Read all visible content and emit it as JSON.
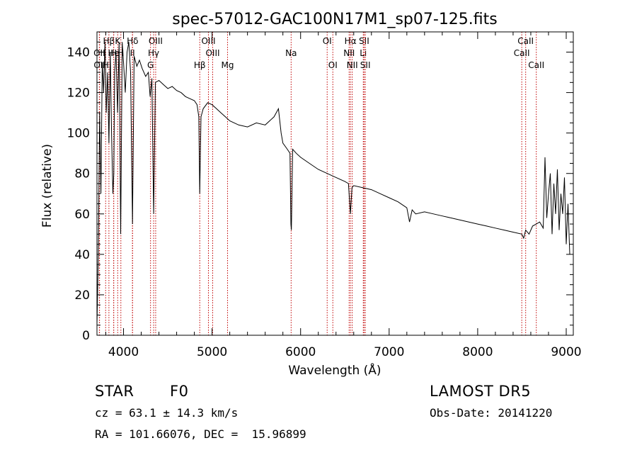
{
  "chart_data": {
    "type": "line",
    "title": "spec-57012-GAC100N17M1_sp07-125.fits",
    "xlabel": "Wavelength (Å)",
    "ylabel": "Flux (relative)",
    "xlim": [
      3700,
      9080
    ],
    "ylim": [
      0,
      150
    ],
    "x_ticks": [
      4000,
      5000,
      6000,
      7000,
      8000,
      9000
    ],
    "y_ticks": [
      0,
      20,
      40,
      60,
      80,
      100,
      120,
      140
    ],
    "grid": false,
    "series": [
      {
        "x": [
          3700,
          3715,
          3730,
          3745,
          3760,
          3775,
          3790,
          3805,
          3820,
          3835,
          3850,
          3865,
          3880,
          3890,
          3900,
          3915,
          3933,
          3950,
          3968,
          3985,
          4000,
          4020,
          4040,
          4060,
          4080,
          4101,
          4120,
          4150,
          4180,
          4210,
          4250,
          4280,
          4300,
          4320,
          4340,
          4360,
          4400,
          4450,
          4500,
          4550,
          4600,
          4650,
          4700,
          4750,
          4800,
          4830,
          4850,
          4861,
          4875,
          4900,
          4950,
          5000,
          5050,
          5100,
          5150,
          5200,
          5300,
          5400,
          5500,
          5600,
          5700,
          5750,
          5780,
          5800,
          5850,
          5880,
          5890,
          5896,
          5910,
          5950,
          6000,
          6100,
          6200,
          6300,
          6400,
          6500,
          6540,
          6563,
          6580,
          6600,
          6700,
          6800,
          6900,
          7000,
          7100,
          7200,
          7230,
          7260,
          7300,
          7400,
          7500,
          7600,
          7700,
          7800,
          7900,
          8000,
          8100,
          8200,
          8300,
          8400,
          8498,
          8520,
          8542,
          8580,
          8620,
          8662,
          8700,
          8740,
          8760,
          8780,
          8800,
          8820,
          8840,
          8860,
          8880,
          8900,
          8920,
          8940,
          8960,
          8980,
          9000,
          9020,
          9040
        ],
        "y": [
          5,
          40,
          110,
          70,
          135,
          120,
          145,
          110,
          130,
          95,
          140,
          100,
          70,
          80,
          130,
          140,
          110,
          145,
          50,
          145,
          135,
          120,
          140,
          145,
          130,
          55,
          138,
          133,
          136,
          132,
          128,
          130,
          118,
          127,
          60,
          125,
          126,
          124,
          122,
          123,
          121,
          120,
          118,
          117,
          116,
          114,
          108,
          70,
          108,
          112,
          115,
          114,
          112,
          110,
          108,
          106,
          104,
          103,
          105,
          104,
          108,
          112,
          100,
          95,
          92,
          90,
          55,
          52,
          92,
          90,
          88,
          85,
          82,
          80,
          78,
          76,
          75,
          60,
          73,
          74,
          73,
          72,
          70,
          68,
          66,
          63,
          56,
          62,
          60,
          61,
          60,
          59,
          58,
          57,
          56,
          55,
          54,
          53,
          52,
          51,
          50,
          48,
          52,
          50,
          54,
          55,
          56,
          53,
          88,
          58,
          70,
          80,
          50,
          75,
          60,
          82,
          52,
          70,
          60,
          78,
          45,
          65,
          40
        ]
      }
    ],
    "line_markers": [
      {
        "label": "Hβ",
        "x": 3835,
        "row": 1
      },
      {
        "label": "K",
        "x": 3934,
        "row": 1
      },
      {
        "label": "Hδ",
        "x": 4102,
        "row": 1
      },
      {
        "label": "OIII",
        "x": 4363,
        "row": 1
      },
      {
        "label": "OIII",
        "x": 4959,
        "row": 1
      },
      {
        "label": "OI",
        "x": 6300,
        "row": 1
      },
      {
        "label": "Hα",
        "x": 6563,
        "row": 1
      },
      {
        "label": "SII",
        "x": 6717,
        "row": 1
      },
      {
        "label": "CaII",
        "x": 8542,
        "row": 1
      },
      {
        "label": "OII",
        "x": 3727,
        "row": 2
      },
      {
        "label": "H",
        "x": 3970,
        "row": 2
      },
      {
        "label": "He",
        "x": 3889,
        "row": 2
      },
      {
        "label": "Hγ",
        "x": 4340,
        "row": 2
      },
      {
        "label": "OIII",
        "x": 5007,
        "row": 2
      },
      {
        "label": "Na",
        "x": 5893,
        "row": 2
      },
      {
        "label": "NII",
        "x": 6548,
        "row": 2
      },
      {
        "label": "Li",
        "x": 6708,
        "row": 2
      },
      {
        "label": "CaII",
        "x": 8498,
        "row": 2
      },
      {
        "label": "OII",
        "x": 3729,
        "row": 3
      },
      {
        "label": "H",
        "x": 3798,
        "row": 3
      },
      {
        "label": "G",
        "x": 4305,
        "row": 3
      },
      {
        "label": "Hβ",
        "x": 4861,
        "row": 3
      },
      {
        "label": "Mg",
        "x": 5175,
        "row": 3
      },
      {
        "label": "OI",
        "x": 6364,
        "row": 3
      },
      {
        "label": "NII",
        "x": 6583,
        "row": 3
      },
      {
        "label": "SII",
        "x": 6731,
        "row": 3
      },
      {
        "label": "CaII",
        "x": 8662,
        "row": 3
      },
      {
        "label": "H",
        "x": 3889,
        "row": 2
      },
      {
        "label": "II",
        "x": 4101,
        "row": 2
      }
    ]
  },
  "info": {
    "class": "STAR",
    "subclass": "F0",
    "survey": "LAMOST DR5",
    "cz": "cz = 63.1 ± 14.3 km/s",
    "obs_date": "Obs-Date: 20141220",
    "radec": "RA = 101.66076, DEC =  15.96899"
  }
}
